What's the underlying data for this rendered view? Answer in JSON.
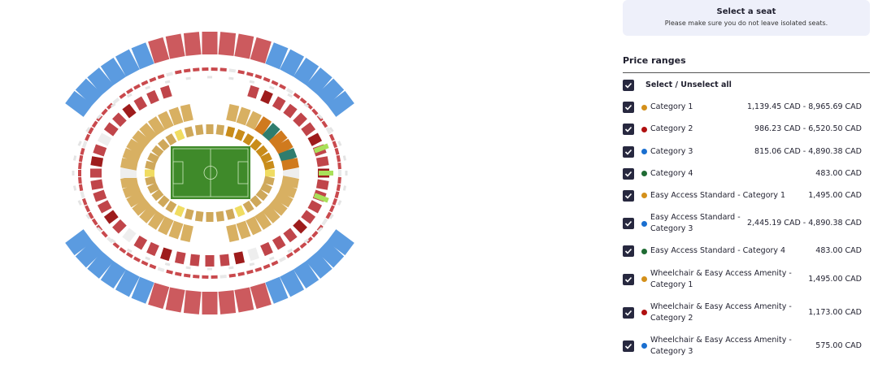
{
  "header": {
    "title": "Select a seat",
    "subtitle": "Please make sure you do not leave isolated seats."
  },
  "price_ranges": {
    "title": "Price ranges",
    "select_all": "Select / Unselect all",
    "items": [
      {
        "name": "Category 1",
        "color": "#d4901a",
        "price": "1,139.45 CAD - 8,965.69 CAD"
      },
      {
        "name": "Category 2",
        "color": "#b01010",
        "price": "986.23 CAD - 6,520.50 CAD"
      },
      {
        "name": "Category 3",
        "color": "#1a6fd0",
        "price": "815.06 CAD - 4,890.38 CAD"
      },
      {
        "name": "Category 4",
        "color": "#1f6b33",
        "price": "483.00 CAD"
      },
      {
        "name": "Easy Access Standard - Category 1",
        "color": "#d4901a",
        "price": "1,495.00 CAD"
      },
      {
        "name": "Easy Access Standard - Category 3",
        "color": "#1a6fd0",
        "price": "2,445.19 CAD - 4,890.38 CAD"
      },
      {
        "name": "Easy Access Standard - Category 4",
        "color": "#1f6b33",
        "price": "483.00 CAD"
      },
      {
        "name": "Wheelchair & Easy Access Amenity - Category 1",
        "color": "#d4901a",
        "price": "1,495.00 CAD"
      },
      {
        "name": "Wheelchair & Easy Access Amenity - Category 2",
        "color": "#b01010",
        "price": "1,173.00 CAD"
      },
      {
        "name": "Wheelchair & Easy Access Amenity - Category 3",
        "color": "#1a6fd0",
        "price": "575.00 CAD"
      }
    ]
  }
}
